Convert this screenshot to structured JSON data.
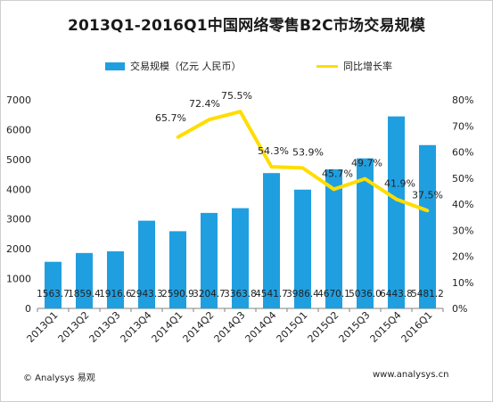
{
  "header": {
    "title": "2013Q1-2016Q1中国网络零售B2C市场交易规模"
  },
  "legend": {
    "bar_label": "交易规模（亿元 人民币）",
    "line_label": "同比增长率"
  },
  "footer": {
    "source": "© Analysys 易观",
    "url": "www.analysys.cn"
  },
  "colors": {
    "bar": "#1f9fe0",
    "line": "#ffdd00"
  },
  "chart_data": {
    "type": "bar",
    "categories": [
      "2013Q1",
      "2013Q2",
      "2013Q3",
      "2013Q4",
      "2014Q1",
      "2014Q2",
      "2014Q3",
      "2014Q4",
      "2015Q1",
      "2015Q2",
      "2015Q3",
      "2015Q4",
      "2016Q1"
    ],
    "series": [
      {
        "name": "交易规模（亿元 人民币）",
        "type": "bar",
        "axis": "left",
        "values": [
          1563.7,
          1859.4,
          1916.6,
          2943.3,
          2590.9,
          3204.7,
          3363.8,
          4541.7,
          3986.4,
          4670.1,
          5036.0,
          6443.8,
          5481.2
        ],
        "labels": [
          "1563.7",
          "1859.4",
          "1916.6",
          "2943.3",
          "2590.9",
          "3204.7",
          "3363.8",
          "4541.7",
          "3986.4",
          "4670.1",
          "5036.0",
          "6443.8",
          "5481.2"
        ]
      },
      {
        "name": "同比增长率",
        "type": "line",
        "axis": "right",
        "values": [
          null,
          null,
          null,
          null,
          65.7,
          72.4,
          75.5,
          54.3,
          53.9,
          45.7,
          49.7,
          41.9,
          37.5
        ],
        "labels": [
          "",
          "",
          "",
          "",
          "65.7%",
          "72.4%",
          "75.5%",
          "54.3%",
          "53.9%",
          "45.7%",
          "49.7%",
          "41.9%",
          "37.5%"
        ]
      }
    ],
    "ylim_left": [
      0,
      7000
    ],
    "yticks_left": [
      "0",
      "1000",
      "2000",
      "3000",
      "4000",
      "5000",
      "6000",
      "7000"
    ],
    "ylim_right": [
      0,
      80
    ],
    "yticks_right": [
      "0%",
      "10%",
      "20%",
      "30%",
      "40%",
      "50%",
      "60%",
      "70%",
      "80%"
    ],
    "grid": false,
    "legend_position": "top"
  }
}
